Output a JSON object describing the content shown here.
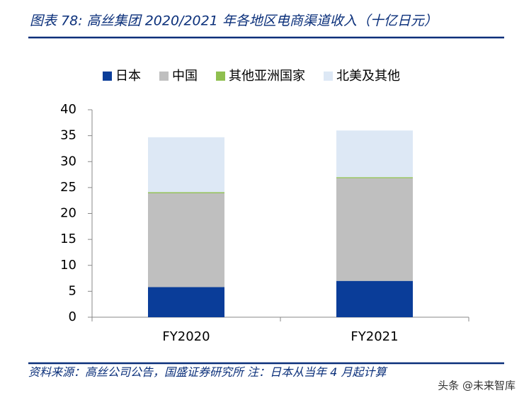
{
  "chart_data": {
    "type": "stacked-bar",
    "title": "图表 78:  高丝集团 2020/2021 年各地区电商渠道收入（十亿日元）",
    "categories": [
      "FY2020",
      "FY2021"
    ],
    "series": [
      {
        "name": "日本",
        "color": "#0a3d99",
        "values": [
          5.8,
          7.0
        ]
      },
      {
        "name": "中国",
        "color": "#bfbfbf",
        "values": [
          18.1,
          19.8
        ]
      },
      {
        "name": "其他亚洲国家",
        "color": "#8fbf4f",
        "values": [
          0.2,
          0.2
        ]
      },
      {
        "name": "北美及其他",
        "color": "#dde8f5",
        "values": [
          10.6,
          9.0
        ]
      }
    ],
    "ylim": [
      0,
      40
    ],
    "yticks": [
      0,
      5,
      10,
      15,
      20,
      25,
      30,
      35,
      40
    ],
    "legend": "top",
    "source": "资料来源：高丝公司公告，国盛证券研究所  注：日本从当年 4 月起计算",
    "watermark": "头条 @未来智库"
  }
}
